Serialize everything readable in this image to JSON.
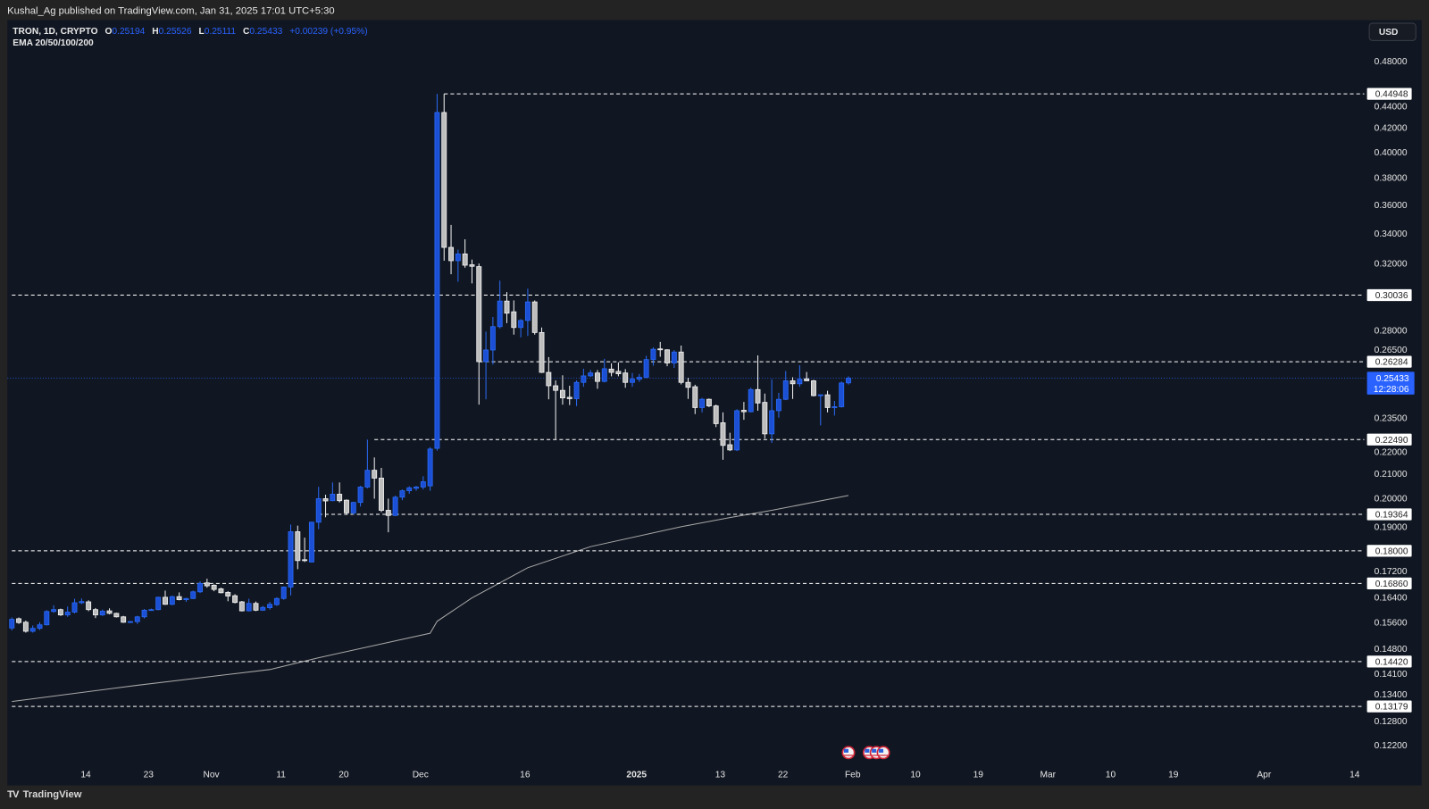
{
  "header": {
    "published": "Kushal_Ag published on TradingView.com, Jan 31, 2025 17:01 UTC+5:30"
  },
  "legend": {
    "symbol": "TRON, 1D, CRYPTO",
    "o_label": "O",
    "o": "0.25194",
    "h_label": "H",
    "h": "0.25526",
    "l_label": "L",
    "l": "0.25111",
    "c_label": "C",
    "c": "0.25433",
    "change": "+0.00239 (+0.95%)",
    "indicator": "EMA 20/50/100/200"
  },
  "currency_button": "USD",
  "footer": {
    "brand": "TradingView"
  },
  "colors": {
    "up": "#1a4fd6",
    "up_edge": "#2a6af5",
    "down": "#bdbdbd",
    "down_edge": "#f2f2f2",
    "accent": "#2962ff",
    "background": "#111722",
    "ema": "#a8a8a8"
  },
  "chart_data": {
    "type": "candlestick",
    "scale": "log",
    "ylim": [
      0.118,
      0.49
    ],
    "x": [
      "2024-10-03",
      "2024-10-04",
      "2024-10-05",
      "2024-10-06",
      "2024-10-07",
      "2024-10-08",
      "2024-10-09",
      "2024-10-10",
      "2024-10-11",
      "2024-10-12",
      "2024-10-13",
      "2024-10-14",
      "2024-10-15",
      "2024-10-16",
      "2024-10-17",
      "2024-10-18",
      "2024-10-19",
      "2024-10-20",
      "2024-10-21",
      "2024-10-22",
      "2024-10-23",
      "2024-10-24",
      "2024-10-25",
      "2024-10-26",
      "2024-10-27",
      "2024-10-28",
      "2024-10-29",
      "2024-10-30",
      "2024-10-31",
      "2024-11-01",
      "2024-11-02",
      "2024-11-03",
      "2024-11-04",
      "2024-11-05",
      "2024-11-06",
      "2024-11-07",
      "2024-11-08",
      "2024-11-09",
      "2024-11-10",
      "2024-11-11",
      "2024-11-12",
      "2024-11-13",
      "2024-11-14",
      "2024-11-15",
      "2024-11-16",
      "2024-11-17",
      "2024-11-18",
      "2024-11-19",
      "2024-11-20",
      "2024-11-21",
      "2024-11-22",
      "2024-11-23",
      "2024-11-24",
      "2024-11-25",
      "2024-11-26",
      "2024-11-27",
      "2024-11-28",
      "2024-11-29",
      "2024-11-30",
      "2024-12-01",
      "2024-12-02",
      "2024-12-03",
      "2024-12-04",
      "2024-12-05",
      "2024-12-06",
      "2024-12-07",
      "2024-12-08",
      "2024-12-09",
      "2024-12-10",
      "2024-12-11",
      "2024-12-12",
      "2024-12-13",
      "2024-12-14",
      "2024-12-15",
      "2024-12-16",
      "2024-12-17",
      "2024-12-18",
      "2024-12-19",
      "2024-12-20",
      "2024-12-21",
      "2024-12-22",
      "2024-12-23",
      "2024-12-24",
      "2024-12-25",
      "2024-12-26",
      "2024-12-27",
      "2024-12-28",
      "2024-12-29",
      "2024-12-30",
      "2024-12-31",
      "2025-01-01",
      "2025-01-02",
      "2025-01-03",
      "2025-01-04",
      "2025-01-05",
      "2025-01-06",
      "2025-01-07",
      "2025-01-08",
      "2025-01-09",
      "2025-01-10",
      "2025-01-11",
      "2025-01-12",
      "2025-01-13",
      "2025-01-14",
      "2025-01-15",
      "2025-01-16",
      "2025-01-17",
      "2025-01-18",
      "2025-01-19",
      "2025-01-20",
      "2025-01-21",
      "2025-01-22",
      "2025-01-23",
      "2025-01-24",
      "2025-01-25",
      "2025-01-26",
      "2025-01-27",
      "2025-01-28",
      "2025-01-29",
      "2025-01-30",
      "2025-01-31"
    ],
    "ohlc": [
      [
        0.1542,
        0.1575,
        0.1535,
        0.1569
      ],
      [
        0.1571,
        0.1575,
        0.1555,
        0.1559
      ],
      [
        0.156,
        0.1565,
        0.1528,
        0.1532
      ],
      [
        0.1532,
        0.155,
        0.1528,
        0.1541
      ],
      [
        0.1541,
        0.156,
        0.1536,
        0.1552
      ],
      [
        0.1552,
        0.1598,
        0.155,
        0.1594
      ],
      [
        0.1594,
        0.1614,
        0.159,
        0.16
      ],
      [
        0.16,
        0.1603,
        0.158,
        0.1583
      ],
      [
        0.1583,
        0.161,
        0.1577,
        0.1592
      ],
      [
        0.1592,
        0.1635,
        0.1588,
        0.1622
      ],
      [
        0.1622,
        0.1636,
        0.1618,
        0.1626
      ],
      [
        0.1625,
        0.163,
        0.1595,
        0.16
      ],
      [
        0.16,
        0.1605,
        0.1573,
        0.1583
      ],
      [
        0.1583,
        0.16,
        0.158,
        0.1595
      ],
      [
        0.1596,
        0.1604,
        0.1585,
        0.1588
      ],
      [
        0.1588,
        0.159,
        0.1575,
        0.1577
      ],
      [
        0.1577,
        0.158,
        0.1558,
        0.156
      ],
      [
        0.156,
        0.1564,
        0.1558,
        0.1562
      ],
      [
        0.1562,
        0.158,
        0.1555,
        0.1577
      ],
      [
        0.1577,
        0.1602,
        0.1572,
        0.1598
      ],
      [
        0.1598,
        0.1603,
        0.1596,
        0.16
      ],
      [
        0.16,
        0.1642,
        0.1598,
        0.164
      ],
      [
        0.164,
        0.1662,
        0.1615,
        0.1617
      ],
      [
        0.1617,
        0.1645,
        0.1614,
        0.1642
      ],
      [
        0.1642,
        0.1656,
        0.163,
        0.1632
      ],
      [
        0.1632,
        0.1638,
        0.1625,
        0.1636
      ],
      [
        0.1636,
        0.1662,
        0.1634,
        0.1658
      ],
      [
        0.1658,
        0.1693,
        0.1654,
        0.1686
      ],
      [
        0.1688,
        0.1702,
        0.1672,
        0.1678
      ],
      [
        0.168,
        0.1683,
        0.166,
        0.1666
      ],
      [
        0.1668,
        0.1672,
        0.1653,
        0.1655
      ],
      [
        0.1656,
        0.166,
        0.1627,
        0.1644
      ],
      [
        0.1645,
        0.165,
        0.162,
        0.1623
      ],
      [
        0.1625,
        0.1628,
        0.1594,
        0.1596
      ],
      [
        0.1596,
        0.1635,
        0.1594,
        0.162
      ],
      [
        0.162,
        0.1626,
        0.1595,
        0.1598
      ],
      [
        0.1598,
        0.1612,
        0.1596,
        0.1607
      ],
      [
        0.1606,
        0.1625,
        0.16,
        0.1617
      ],
      [
        0.1616,
        0.164,
        0.1612,
        0.1636
      ],
      [
        0.1636,
        0.1676,
        0.1632,
        0.1674
      ],
      [
        0.1674,
        0.1897,
        0.1646,
        0.187
      ],
      [
        0.187,
        0.1893,
        0.1735,
        0.1765
      ],
      [
        0.1768,
        0.1848,
        0.176,
        0.1765
      ],
      [
        0.176,
        0.1908,
        0.1758,
        0.1906
      ],
      [
        0.1906,
        0.2046,
        0.188,
        0.1998
      ],
      [
        0.1998,
        0.2014,
        0.1925,
        0.1989
      ],
      [
        0.199,
        0.2064,
        0.1988,
        0.2016
      ],
      [
        0.2016,
        0.2064,
        0.1983,
        0.199
      ],
      [
        0.1992,
        0.1995,
        0.1935,
        0.1942
      ],
      [
        0.1942,
        0.1985,
        0.1935,
        0.1983
      ],
      [
        0.1983,
        0.205,
        0.1967,
        0.2045
      ],
      [
        0.2045,
        0.2249,
        0.204,
        0.2115
      ],
      [
        0.2115,
        0.217,
        0.1998,
        0.2082
      ],
      [
        0.2082,
        0.2125,
        0.1945,
        0.1952
      ],
      [
        0.1952,
        0.1998,
        0.1868,
        0.1932
      ],
      [
        0.1932,
        0.201,
        0.193,
        0.2004
      ],
      [
        0.2004,
        0.2035,
        0.1992,
        0.203
      ],
      [
        0.203,
        0.2048,
        0.2018,
        0.2042
      ],
      [
        0.204,
        0.205,
        0.203,
        0.2045
      ],
      [
        0.2045,
        0.209,
        0.2035,
        0.2067
      ],
      [
        0.205,
        0.2215,
        0.203,
        0.2207
      ],
      [
        0.221,
        0.4495,
        0.22,
        0.433
      ],
      [
        0.433,
        0.4495,
        0.3218,
        0.3305
      ],
      [
        0.3305,
        0.3457,
        0.3132,
        0.3218
      ],
      [
        0.3218,
        0.329,
        0.3085,
        0.3262
      ],
      [
        0.3262,
        0.3359,
        0.3173,
        0.3189
      ],
      [
        0.3192,
        0.3225,
        0.3075,
        0.3182
      ],
      [
        0.318,
        0.32,
        0.2412,
        0.2629
      ],
      [
        0.2629,
        0.2792,
        0.2438,
        0.2691
      ],
      [
        0.2691,
        0.2875,
        0.2614,
        0.282
      ],
      [
        0.282,
        0.3092,
        0.281,
        0.2968
      ],
      [
        0.2968,
        0.3022,
        0.284,
        0.2897
      ],
      [
        0.2905,
        0.2972,
        0.2775,
        0.2815
      ],
      [
        0.2815,
        0.2862,
        0.276,
        0.2855
      ],
      [
        0.2855,
        0.3043,
        0.2768,
        0.2963
      ],
      [
        0.2963,
        0.2972,
        0.2775,
        0.2787
      ],
      [
        0.2787,
        0.2815,
        0.257,
        0.2573
      ],
      [
        0.2573,
        0.2653,
        0.2438,
        0.2505
      ],
      [
        0.2505,
        0.2532,
        0.2249,
        0.2482
      ],
      [
        0.2482,
        0.2558,
        0.2412,
        0.2445
      ],
      [
        0.2448,
        0.2505,
        0.241,
        0.2441
      ],
      [
        0.2441,
        0.2532,
        0.2405,
        0.2522
      ],
      [
        0.2522,
        0.2592,
        0.25,
        0.2555
      ],
      [
        0.2555,
        0.2585,
        0.255,
        0.257
      ],
      [
        0.257,
        0.2585,
        0.249,
        0.2527
      ],
      [
        0.2527,
        0.2644,
        0.2522,
        0.2592
      ],
      [
        0.259,
        0.262,
        0.2553,
        0.2573
      ],
      [
        0.2578,
        0.2625,
        0.2553,
        0.2566
      ],
      [
        0.257,
        0.259,
        0.2495,
        0.2522
      ],
      [
        0.2522,
        0.257,
        0.25,
        0.2538
      ],
      [
        0.2538,
        0.2565,
        0.2525,
        0.2548
      ],
      [
        0.2548,
        0.266,
        0.2544,
        0.264
      ],
      [
        0.264,
        0.2705,
        0.2608,
        0.2695
      ],
      [
        0.2697,
        0.2735,
        0.2655,
        0.2692
      ],
      [
        0.2692,
        0.2695,
        0.2605,
        0.2622
      ],
      [
        0.2622,
        0.269,
        0.2596,
        0.268
      ],
      [
        0.268,
        0.2715,
        0.2512,
        0.2522
      ],
      [
        0.2522,
        0.2545,
        0.244,
        0.2497
      ],
      [
        0.25,
        0.251,
        0.2367,
        0.2398
      ],
      [
        0.2398,
        0.2445,
        0.2375,
        0.2438
      ],
      [
        0.2438,
        0.2442,
        0.24,
        0.2406
      ],
      [
        0.2406,
        0.2412,
        0.2306,
        0.2322
      ],
      [
        0.2326,
        0.2375,
        0.216,
        0.2223
      ],
      [
        0.2226,
        0.228,
        0.2198,
        0.2203
      ],
      [
        0.2203,
        0.239,
        0.2198,
        0.2383
      ],
      [
        0.2385,
        0.2425,
        0.234,
        0.2378
      ],
      [
        0.2378,
        0.2495,
        0.2375,
        0.2486
      ],
      [
        0.2486,
        0.2662,
        0.2383,
        0.242
      ],
      [
        0.2423,
        0.2466,
        0.2254,
        0.2275
      ],
      [
        0.2275,
        0.2538,
        0.2234,
        0.2383
      ],
      [
        0.2383,
        0.247,
        0.235,
        0.2438
      ],
      [
        0.2438,
        0.258,
        0.2434,
        0.253
      ],
      [
        0.253,
        0.2548,
        0.244,
        0.2515
      ],
      [
        0.2515,
        0.261,
        0.25,
        0.2538
      ],
      [
        0.254,
        0.2575,
        0.2528,
        0.253
      ],
      [
        0.253,
        0.2535,
        0.2452,
        0.2456
      ],
      [
        0.2456,
        0.2462,
        0.2314,
        0.246
      ],
      [
        0.246,
        0.248,
        0.2375,
        0.2398
      ],
      [
        0.2398,
        0.243,
        0.236,
        0.2402
      ],
      [
        0.2402,
        0.2526,
        0.2398,
        0.2519
      ],
      [
        0.25194,
        0.25526,
        0.25111,
        0.25433
      ]
    ],
    "ema200": [
      [
        "2024-10-03",
        0.1331
      ],
      [
        "2024-10-21",
        0.1375
      ],
      [
        "2024-11-09",
        0.1419
      ],
      [
        "2024-11-16",
        0.1453
      ],
      [
        "2024-12-02",
        0.1526
      ],
      [
        "2024-12-03",
        0.1563
      ],
      [
        "2024-12-08",
        0.1638
      ],
      [
        "2024-12-16",
        0.174
      ],
      [
        "2024-12-25",
        0.1815
      ],
      [
        "2025-01-07",
        0.1889
      ],
      [
        "2025-01-14",
        0.1924
      ],
      [
        "2025-01-20",
        0.1952
      ],
      [
        "2025-01-31",
        0.2011
      ]
    ],
    "levels": [
      {
        "value": 0.44948,
        "label": "0.44948",
        "from": "2024-12-04"
      },
      {
        "value": 0.30036,
        "label": "0.30036",
        "from": "2024-10-03"
      },
      {
        "value": 0.26284,
        "label": "0.26284",
        "from": "2024-12-09"
      },
      {
        "value": 0.2249,
        "label": "0.22490",
        "from": "2024-11-24"
      },
      {
        "value": 0.19364,
        "label": "0.19364",
        "from": "2024-11-16"
      },
      {
        "value": 0.18,
        "label": "0.18000",
        "from": "2024-10-03"
      },
      {
        "value": 0.1686,
        "label": "0.16860",
        "from": "2024-10-03"
      },
      {
        "value": 0.1442,
        "label": "0.14420",
        "from": "2024-10-03"
      },
      {
        "value": 0.13179,
        "label": "0.13179",
        "from": "2024-10-03"
      }
    ],
    "last_price": {
      "value": 0.25433,
      "label": "0.25433",
      "countdown": "12:28:06"
    },
    "y_ticks": [
      "0.48000",
      "0.44000",
      "0.42000",
      "0.40000",
      "0.38000",
      "0.36000",
      "0.34000",
      "0.32000",
      "0.28000",
      "0.26500",
      "0.23500",
      "0.22000",
      "0.21000",
      "0.20000",
      "0.19000",
      "0.17200",
      "0.16400",
      "0.15600",
      "0.14800",
      "0.14100",
      "0.13400",
      "0.12800",
      "0.12200"
    ],
    "x_ticks": [
      {
        "label": "14",
        "date": "2024-10-14"
      },
      {
        "label": "23",
        "date": "2024-10-23"
      },
      {
        "label": "Nov",
        "date": "2024-11-01"
      },
      {
        "label": "11",
        "date": "2024-11-11"
      },
      {
        "label": "20",
        "date": "2024-11-20"
      },
      {
        "label": "Dec",
        "date": "2024-12-01"
      },
      {
        "label": "16",
        "date": "2024-12-16"
      },
      {
        "label": "2025",
        "date": "2025-01-01"
      },
      {
        "label": "13",
        "date": "2025-01-13"
      },
      {
        "label": "22",
        "date": "2025-01-22"
      },
      {
        "label": "Feb",
        "date": "2025-02-01"
      },
      {
        "label": "10",
        "date": "2025-02-10"
      },
      {
        "label": "19",
        "date": "2025-02-19"
      },
      {
        "label": "Mar",
        "date": "2025-03-01"
      },
      {
        "label": "10",
        "date": "2025-03-10"
      },
      {
        "label": "19",
        "date": "2025-03-19"
      },
      {
        "label": "Apr",
        "date": "2025-04-01"
      },
      {
        "label": "14",
        "date": "2025-04-14"
      }
    ],
    "events": [
      {
        "icon": "us-flag-icon",
        "date": "2025-01-31"
      },
      {
        "icon": "us-flag-icon",
        "date": "2025-02-03"
      },
      {
        "icon": "us-flag-icon",
        "date": "2025-02-04"
      },
      {
        "icon": "us-flag-icon",
        "date": "2025-02-05"
      }
    ]
  }
}
